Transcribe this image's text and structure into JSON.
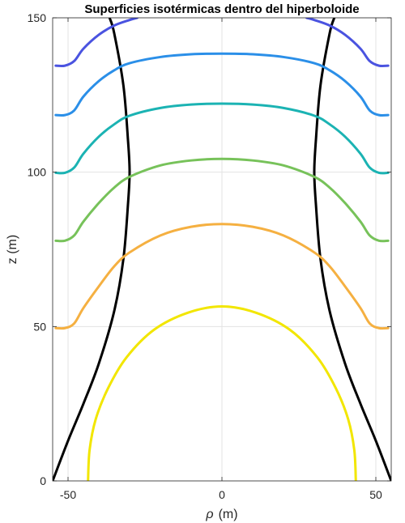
{
  "chart_data": {
    "type": "line",
    "title": "Superficies isotérmicas dentro del hiperboloide",
    "xlabel_symbol": "ρ",
    "xlabel_unit": "(m)",
    "ylabel": "z (m)",
    "xlim": [
      -55,
      55
    ],
    "ylim": [
      0,
      150
    ],
    "x_ticks": [
      -50,
      0,
      50
    ],
    "x_tick_labels": [
      "-50",
      "0",
      "50"
    ],
    "y_ticks": [
      0,
      50,
      100,
      150
    ],
    "y_tick_labels": [
      "0",
      "50",
      "100",
      "150"
    ],
    "grid": true,
    "series": [
      {
        "color": "#000000",
        "points": [
          [
            -55,
            0
          ],
          [
            -50,
            13
          ],
          [
            -45,
            25
          ],
          [
            -40,
            38
          ],
          [
            -35,
            55
          ],
          [
            -32,
            72
          ],
          [
            -30.5,
            90
          ],
          [
            -30,
            100
          ],
          [
            -30.5,
            110
          ],
          [
            -32,
            128
          ],
          [
            -35,
            145
          ],
          [
            -36.5,
            150
          ]
        ]
      },
      {
        "color": "#000000",
        "points": [
          [
            55,
            0
          ],
          [
            50,
            13
          ],
          [
            45,
            25
          ],
          [
            40,
            38
          ],
          [
            35,
            55
          ],
          [
            32,
            72
          ],
          [
            30.5,
            90
          ],
          [
            30,
            100
          ],
          [
            30.5,
            110
          ],
          [
            32,
            128
          ],
          [
            35,
            145
          ],
          [
            36.5,
            150
          ]
        ]
      },
      {
        "color": "#f2e600",
        "points": [
          [
            -43.5,
            0
          ],
          [
            -43,
            10
          ],
          [
            -41,
            20
          ],
          [
            -37,
            30
          ],
          [
            -31,
            40
          ],
          [
            -22,
            49
          ],
          [
            -11,
            54.5
          ],
          [
            0,
            56.5
          ],
          [
            11,
            54.5
          ],
          [
            22,
            49
          ],
          [
            31,
            40
          ],
          [
            37,
            30
          ],
          [
            41,
            20
          ],
          [
            43,
            10
          ],
          [
            43.5,
            0
          ]
        ]
      },
      {
        "color": "#f5b041",
        "points": [
          [
            -54,
            49.5
          ],
          [
            -51,
            49.5
          ],
          [
            -48,
            51
          ],
          [
            -45,
            56
          ],
          [
            -40,
            63
          ],
          [
            -35,
            69.5
          ],
          [
            -30,
            74
          ],
          [
            -20,
            79.5
          ],
          [
            -10,
            82.3
          ],
          [
            0,
            83.2
          ],
          [
            10,
            82.3
          ],
          [
            20,
            79.5
          ],
          [
            30,
            74
          ],
          [
            35,
            69.5
          ],
          [
            40,
            63
          ],
          [
            45,
            56
          ],
          [
            48,
            51
          ],
          [
            51,
            49.5
          ],
          [
            54,
            49.5
          ]
        ]
      },
      {
        "color": "#77c25a",
        "points": [
          [
            -54,
            77.8
          ],
          [
            -51,
            77.8
          ],
          [
            -48,
            79.5
          ],
          [
            -45,
            84
          ],
          [
            -40,
            90
          ],
          [
            -35,
            95
          ],
          [
            -30,
            98.5
          ],
          [
            -20,
            102.2
          ],
          [
            -10,
            103.8
          ],
          [
            0,
            104.3
          ],
          [
            10,
            103.8
          ],
          [
            20,
            102.2
          ],
          [
            30,
            98.5
          ],
          [
            35,
            95
          ],
          [
            40,
            90
          ],
          [
            45,
            84
          ],
          [
            48,
            79.5
          ],
          [
            51,
            77.8
          ],
          [
            54,
            77.8
          ]
        ]
      },
      {
        "color": "#1bb3b3",
        "points": [
          [
            -54,
            99.8
          ],
          [
            -51,
            99.8
          ],
          [
            -48,
            101.5
          ],
          [
            -45,
            106
          ],
          [
            -40,
            111.5
          ],
          [
            -35,
            115.5
          ],
          [
            -30,
            118.3
          ],
          [
            -20,
            120.8
          ],
          [
            -10,
            121.9
          ],
          [
            0,
            122.2
          ],
          [
            10,
            121.9
          ],
          [
            20,
            120.8
          ],
          [
            30,
            118.3
          ],
          [
            35,
            115.5
          ],
          [
            40,
            111.5
          ],
          [
            45,
            106
          ],
          [
            48,
            101.5
          ],
          [
            51,
            99.8
          ],
          [
            54,
            99.8
          ]
        ]
      },
      {
        "color": "#2b8fe8",
        "points": [
          [
            -54,
            118.5
          ],
          [
            -51,
            118.5
          ],
          [
            -48,
            120
          ],
          [
            -45,
            124.5
          ],
          [
            -40,
            129.5
          ],
          [
            -35,
            133
          ],
          [
            -30,
            135.3
          ],
          [
            -20,
            137.3
          ],
          [
            -10,
            138.2
          ],
          [
            0,
            138.4
          ],
          [
            10,
            138.2
          ],
          [
            20,
            137.3
          ],
          [
            30,
            135.3
          ],
          [
            35,
            133
          ],
          [
            40,
            129.5
          ],
          [
            45,
            124.5
          ],
          [
            48,
            120
          ],
          [
            51,
            118.5
          ],
          [
            54,
            118.5
          ]
        ]
      },
      {
        "color": "#4a53e0",
        "points": [
          [
            -54,
            134.5
          ],
          [
            -51,
            134.5
          ],
          [
            -48,
            136
          ],
          [
            -45,
            140
          ],
          [
            -40,
            144.5
          ],
          [
            -35,
            147.5
          ],
          [
            -30,
            149.3
          ],
          [
            -27.5,
            150
          ]
        ]
      },
      {
        "color": "#4a53e0",
        "points": [
          [
            27.5,
            150
          ],
          [
            30,
            149.3
          ],
          [
            35,
            147.5
          ],
          [
            40,
            144.5
          ],
          [
            45,
            140
          ],
          [
            48,
            136
          ],
          [
            51,
            134.5
          ],
          [
            54,
            134.5
          ]
        ]
      }
    ]
  }
}
